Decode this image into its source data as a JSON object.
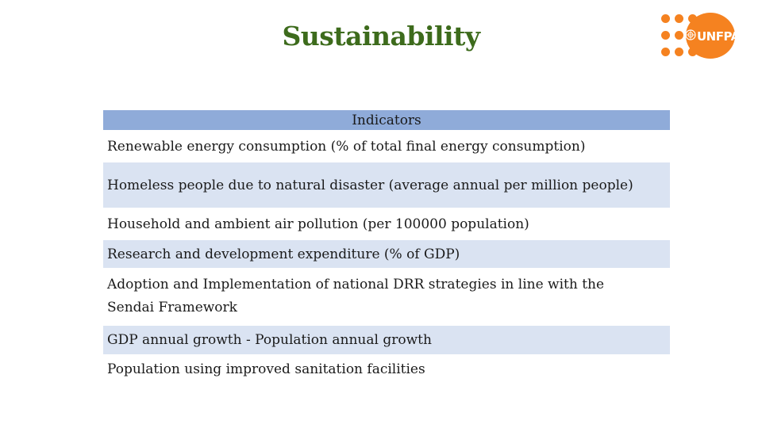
{
  "slide": {
    "title": "Sustainability"
  },
  "logo": {
    "text": "UNFPA",
    "brand_color": "#f58220",
    "icon": "un-emblem-icon"
  },
  "table": {
    "header": "Indicators",
    "header_color": "#8fabd9",
    "band_color": "#dae3f2",
    "rows": [
      "Renewable energy consumption (% of total final energy consumption)",
      "Homeless people due to natural disaster (average annual per million people)",
      "Household and ambient air pollution (per 100000 population)",
      "Research and development expenditure (% of GDP)",
      "Adoption and Implementation of national DRR strategies in line with the Sendai Framework",
      "GDP annual growth - Population annual growth",
      "Population using improved sanitation facilities"
    ]
  }
}
